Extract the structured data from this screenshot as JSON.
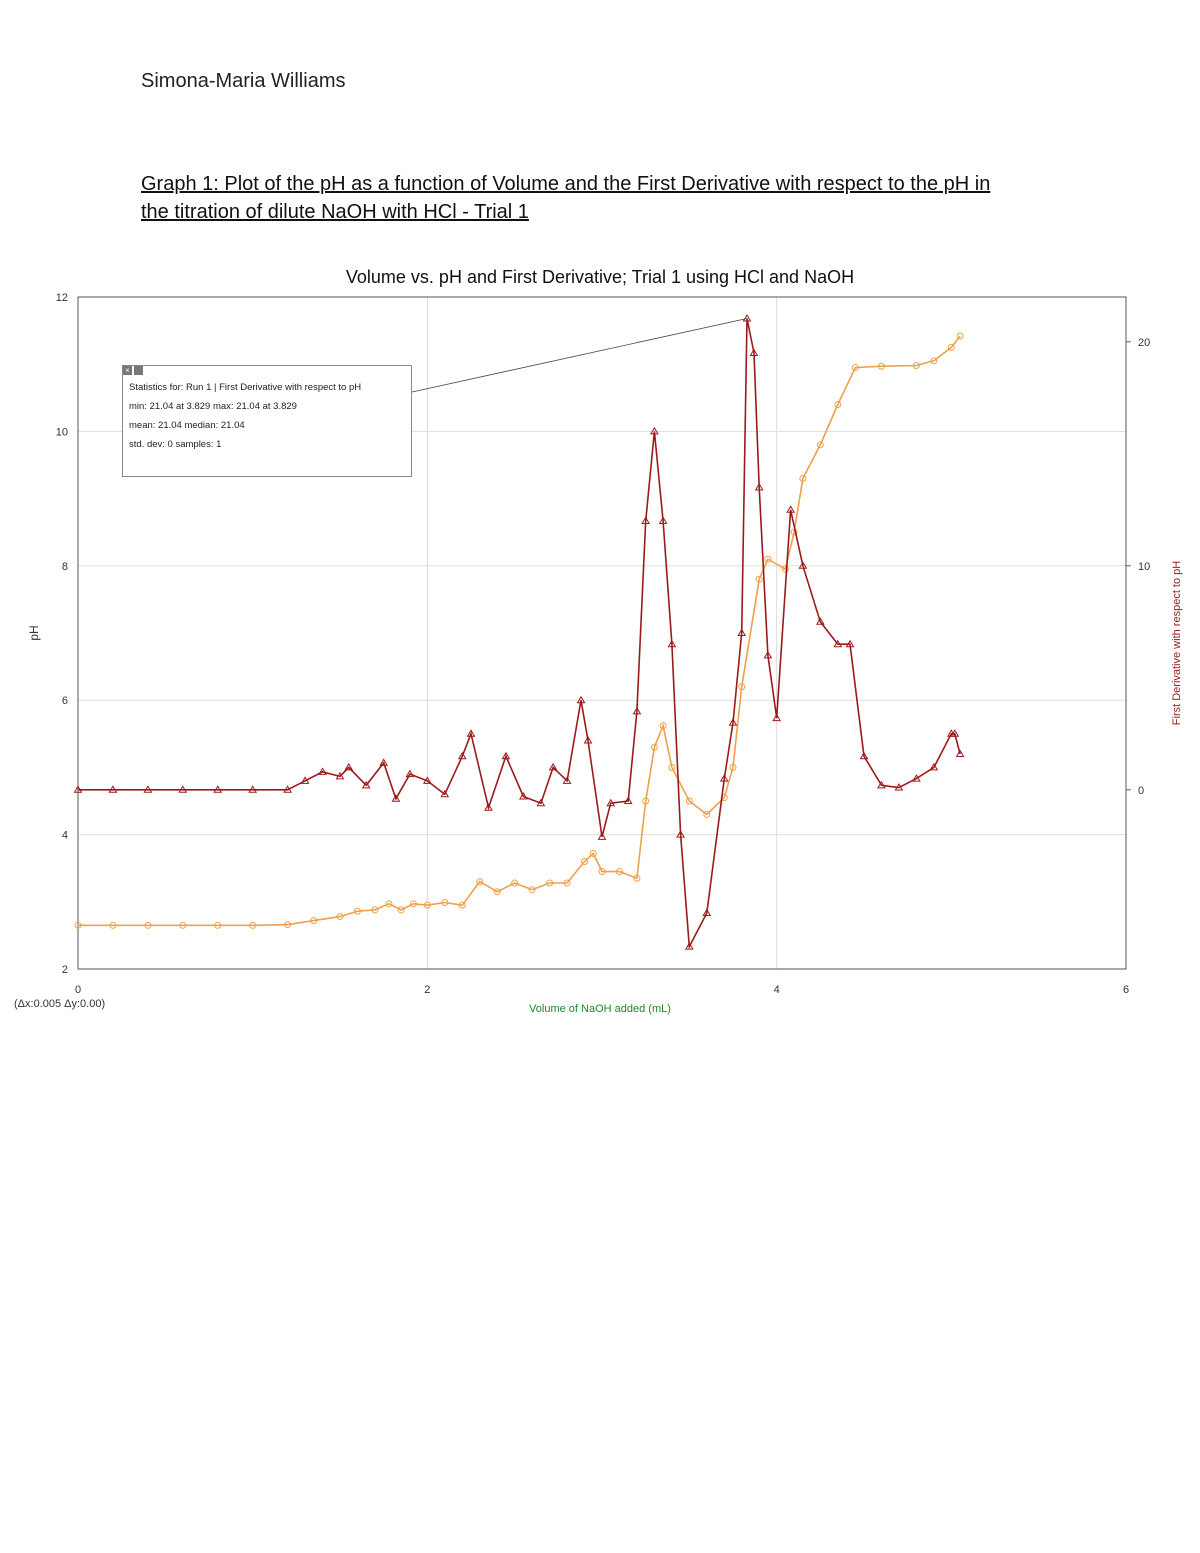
{
  "author": "Simona-Maria Williams",
  "caption_line1": "Graph 1: Plot of the pH as a function of Volume and the First Derivative with respect to the pH in",
  "caption_line2": "the titration of dilute NaOH with HCl - Trial 1",
  "readout": "(Δx:0.005 Δy:0.00)",
  "stats": {
    "close_icon": "close-icon",
    "line1": "Statistics for: Run 1 | First Derivative with respect to pH",
    "line2": "min: 21.04 at 3.829 max: 21.04 at 3.829",
    "line3": "mean: 21.04 median: 21.04",
    "line4": "std. dev: 0 samples: 1"
  },
  "colors": {
    "ph": "#f0a04a",
    "deriv": "#9b1a1a",
    "xlabel": "#1a8a2a",
    "grid": "#dddddd"
  },
  "chart_data": {
    "type": "line",
    "title": "Volume vs. pH and First Derivative; Trial 1 using HCl and NaOH",
    "xlabel": "Volume of NaOH added (mL)",
    "ylabel": "pH",
    "y2label": "First Derivative with respect to pH",
    "xlim": [
      0,
      6
    ],
    "ylim": [
      2,
      12
    ],
    "y2lim": [
      -8,
      22
    ],
    "x_ticks": [
      "0",
      "2",
      "4",
      "6"
    ],
    "y_ticks": [
      "2",
      "4",
      "6",
      "8",
      "10",
      "12"
    ],
    "y2_ticks": [
      "0",
      "10",
      "20"
    ],
    "grid": true,
    "series": [
      {
        "name": "pH",
        "axis": "left",
        "points": [
          [
            0.0,
            2.65
          ],
          [
            0.2,
            2.65
          ],
          [
            0.4,
            2.65
          ],
          [
            0.6,
            2.65
          ],
          [
            0.8,
            2.65
          ],
          [
            1.0,
            2.65
          ],
          [
            1.2,
            2.66
          ],
          [
            1.35,
            2.72
          ],
          [
            1.5,
            2.78
          ],
          [
            1.6,
            2.86
          ],
          [
            1.7,
            2.88
          ],
          [
            1.78,
            2.97
          ],
          [
            1.85,
            2.88
          ],
          [
            1.92,
            2.97
          ],
          [
            2.0,
            2.95
          ],
          [
            2.1,
            2.99
          ],
          [
            2.2,
            2.95
          ],
          [
            2.3,
            3.3
          ],
          [
            2.4,
            3.15
          ],
          [
            2.5,
            3.28
          ],
          [
            2.6,
            3.18
          ],
          [
            2.7,
            3.28
          ],
          [
            2.8,
            3.28
          ],
          [
            2.9,
            3.6
          ],
          [
            2.95,
            3.72
          ],
          [
            3.0,
            3.45
          ],
          [
            3.1,
            3.45
          ],
          [
            3.2,
            3.35
          ],
          [
            3.25,
            4.5
          ],
          [
            3.3,
            5.3
          ],
          [
            3.35,
            5.62
          ],
          [
            3.4,
            5.0
          ],
          [
            3.5,
            4.5
          ],
          [
            3.6,
            4.3
          ],
          [
            3.7,
            4.55
          ],
          [
            3.75,
            5.0
          ],
          [
            3.8,
            6.2
          ],
          [
            3.9,
            7.8
          ],
          [
            3.95,
            8.1
          ],
          [
            4.05,
            7.95
          ],
          [
            4.1,
            8.5
          ],
          [
            4.15,
            9.3
          ],
          [
            4.25,
            9.8
          ],
          [
            4.35,
            10.4
          ],
          [
            4.45,
            10.95
          ],
          [
            4.6,
            10.97
          ],
          [
            4.8,
            10.98
          ],
          [
            4.9,
            11.05
          ],
          [
            5.0,
            11.25
          ],
          [
            5.05,
            11.42
          ]
        ]
      },
      {
        "name": "First Derivative with respect to pH",
        "axis": "right",
        "points": [
          [
            0.0,
            0.0
          ],
          [
            0.2,
            0.0
          ],
          [
            0.4,
            0.0
          ],
          [
            0.6,
            0.0
          ],
          [
            0.8,
            0.0
          ],
          [
            1.0,
            0.0
          ],
          [
            1.2,
            0.0
          ],
          [
            1.3,
            0.4
          ],
          [
            1.4,
            0.8
          ],
          [
            1.5,
            0.6
          ],
          [
            1.55,
            1.0
          ],
          [
            1.65,
            0.2
          ],
          [
            1.75,
            1.2
          ],
          [
            1.82,
            -0.4
          ],
          [
            1.9,
            0.7
          ],
          [
            2.0,
            0.4
          ],
          [
            2.1,
            -0.2
          ],
          [
            2.2,
            1.5
          ],
          [
            2.25,
            2.5
          ],
          [
            2.35,
            -0.8
          ],
          [
            2.45,
            1.5
          ],
          [
            2.55,
            -0.3
          ],
          [
            2.65,
            -0.6
          ],
          [
            2.72,
            1.0
          ],
          [
            2.8,
            0.4
          ],
          [
            2.88,
            4.0
          ],
          [
            2.92,
            2.2
          ],
          [
            3.0,
            -2.1
          ],
          [
            3.05,
            -0.6
          ],
          [
            3.15,
            -0.5
          ],
          [
            3.2,
            3.5
          ],
          [
            3.25,
            12.0
          ],
          [
            3.3,
            16.0
          ],
          [
            3.35,
            12.0
          ],
          [
            3.4,
            6.5
          ],
          [
            3.45,
            -2.0
          ],
          [
            3.5,
            -7.0
          ],
          [
            3.6,
            -5.5
          ],
          [
            3.7,
            0.5
          ],
          [
            3.75,
            3.0
          ],
          [
            3.8,
            7.0
          ],
          [
            3.83,
            21.04
          ],
          [
            3.87,
            19.5
          ],
          [
            3.9,
            13.5
          ],
          [
            3.95,
            6.0
          ],
          [
            4.0,
            3.2
          ],
          [
            4.08,
            12.5
          ],
          [
            4.15,
            10.0
          ],
          [
            4.25,
            7.5
          ],
          [
            4.35,
            6.5
          ],
          [
            4.42,
            6.5
          ],
          [
            4.5,
            1.5
          ],
          [
            4.6,
            0.2
          ],
          [
            4.7,
            0.1
          ],
          [
            4.8,
            0.5
          ],
          [
            4.9,
            1.0
          ],
          [
            5.0,
            2.5
          ],
          [
            5.02,
            2.5
          ],
          [
            5.05,
            1.6
          ]
        ]
      }
    ],
    "annotations": [
      "Statistics for: Run 1 | First Derivative with respect to pH"
    ]
  }
}
